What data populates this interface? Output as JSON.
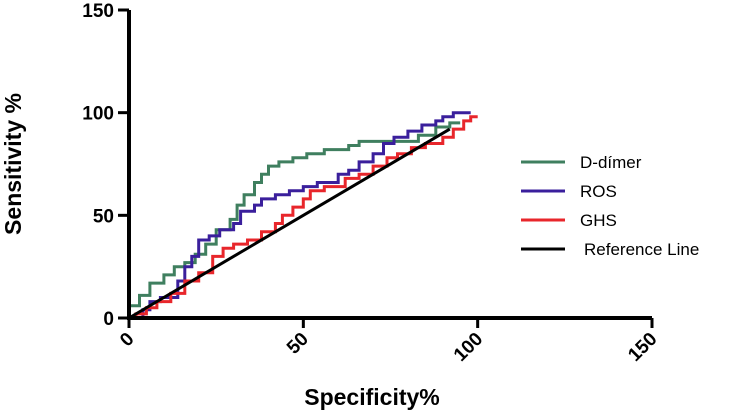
{
  "chart_data": {
    "type": "line",
    "title": "",
    "xlabel": "Specificity%",
    "ylabel": "Sensitivity %",
    "xlim": [
      0,
      150
    ],
    "ylim": [
      0,
      150
    ],
    "x_ticks": [
      "0",
      "50",
      "100",
      "150"
    ],
    "y_ticks": [
      "0",
      "50",
      "100",
      "150"
    ],
    "legend_position": "right",
    "series": [
      {
        "name": "D-dímer",
        "color": "#3f7f5f",
        "points": [
          [
            0,
            0
          ],
          [
            0,
            6
          ],
          [
            3,
            6
          ],
          [
            3,
            11
          ],
          [
            6,
            11
          ],
          [
            6,
            17
          ],
          [
            10,
            17
          ],
          [
            10,
            21
          ],
          [
            13,
            21
          ],
          [
            13,
            25
          ],
          [
            16,
            25
          ],
          [
            16,
            27
          ],
          [
            19,
            27
          ],
          [
            19,
            31
          ],
          [
            22,
            31
          ],
          [
            22,
            36
          ],
          [
            25,
            36
          ],
          [
            25,
            43
          ],
          [
            29,
            43
          ],
          [
            29,
            48
          ],
          [
            31,
            48
          ],
          [
            31,
            55
          ],
          [
            33,
            55
          ],
          [
            33,
            60
          ],
          [
            36,
            60
          ],
          [
            36,
            66
          ],
          [
            38,
            66
          ],
          [
            38,
            70
          ],
          [
            40,
            70
          ],
          [
            40,
            74
          ],
          [
            43,
            74
          ],
          [
            43,
            76
          ],
          [
            47,
            76
          ],
          [
            47,
            78
          ],
          [
            51,
            78
          ],
          [
            51,
            80
          ],
          [
            56,
            80
          ],
          [
            56,
            82
          ],
          [
            63,
            82
          ],
          [
            63,
            84
          ],
          [
            66,
            84
          ],
          [
            66,
            86
          ],
          [
            83,
            86
          ],
          [
            83,
            89
          ],
          [
            88,
            89
          ],
          [
            88,
            93
          ],
          [
            92,
            93
          ],
          [
            92,
            95
          ],
          [
            95,
            95
          ]
        ]
      },
      {
        "name": "ROS",
        "color": "#3a1f9c",
        "points": [
          [
            0,
            0
          ],
          [
            4,
            0
          ],
          [
            4,
            4
          ],
          [
            6,
            4
          ],
          [
            6,
            8
          ],
          [
            9,
            8
          ],
          [
            9,
            10
          ],
          [
            14,
            10
          ],
          [
            14,
            18
          ],
          [
            16,
            18
          ],
          [
            16,
            25
          ],
          [
            18,
            25
          ],
          [
            18,
            30
          ],
          [
            20,
            30
          ],
          [
            20,
            38
          ],
          [
            23,
            38
          ],
          [
            23,
            40
          ],
          [
            26,
            40
          ],
          [
            26,
            43
          ],
          [
            30,
            43
          ],
          [
            30,
            46
          ],
          [
            32,
            46
          ],
          [
            32,
            52
          ],
          [
            36,
            52
          ],
          [
            36,
            55
          ],
          [
            38,
            55
          ],
          [
            38,
            58
          ],
          [
            42,
            58
          ],
          [
            42,
            60
          ],
          [
            46,
            60
          ],
          [
            46,
            62
          ],
          [
            50,
            62
          ],
          [
            50,
            64
          ],
          [
            54,
            64
          ],
          [
            54,
            66
          ],
          [
            60,
            66
          ],
          [
            60,
            70
          ],
          [
            63,
            70
          ],
          [
            63,
            72
          ],
          [
            66,
            72
          ],
          [
            66,
            76
          ],
          [
            70,
            76
          ],
          [
            70,
            80
          ],
          [
            73,
            80
          ],
          [
            73,
            85
          ],
          [
            76,
            85
          ],
          [
            76,
            88
          ],
          [
            80,
            88
          ],
          [
            80,
            91
          ],
          [
            84,
            91
          ],
          [
            84,
            94
          ],
          [
            88,
            94
          ],
          [
            88,
            96
          ],
          [
            90,
            96
          ],
          [
            90,
            98
          ],
          [
            93,
            98
          ],
          [
            93,
            100
          ],
          [
            98,
            100
          ]
        ]
      },
      {
        "name": "GHS",
        "color": "#e8262b",
        "points": [
          [
            0,
            0
          ],
          [
            2,
            0
          ],
          [
            2,
            2
          ],
          [
            5,
            2
          ],
          [
            5,
            5
          ],
          [
            8,
            5
          ],
          [
            8,
            8
          ],
          [
            12,
            8
          ],
          [
            12,
            12
          ],
          [
            16,
            12
          ],
          [
            16,
            18
          ],
          [
            20,
            18
          ],
          [
            20,
            22
          ],
          [
            24,
            22
          ],
          [
            24,
            30
          ],
          [
            27,
            30
          ],
          [
            27,
            34
          ],
          [
            30,
            34
          ],
          [
            30,
            36
          ],
          [
            34,
            36
          ],
          [
            34,
            38
          ],
          [
            38,
            38
          ],
          [
            38,
            42
          ],
          [
            42,
            42
          ],
          [
            42,
            46
          ],
          [
            44,
            46
          ],
          [
            44,
            50
          ],
          [
            47,
            50
          ],
          [
            47,
            54
          ],
          [
            50,
            54
          ],
          [
            50,
            58
          ],
          [
            52,
            58
          ],
          [
            52,
            62
          ],
          [
            56,
            62
          ],
          [
            56,
            64
          ],
          [
            62,
            64
          ],
          [
            62,
            68
          ],
          [
            66,
            68
          ],
          [
            66,
            70
          ],
          [
            70,
            70
          ],
          [
            70,
            74
          ],
          [
            74,
            74
          ],
          [
            74,
            78
          ],
          [
            77,
            78
          ],
          [
            77,
            80
          ],
          [
            81,
            80
          ],
          [
            81,
            83
          ],
          [
            85,
            83
          ],
          [
            85,
            85
          ],
          [
            90,
            85
          ],
          [
            90,
            88
          ],
          [
            93,
            88
          ],
          [
            93,
            92
          ],
          [
            96,
            92
          ],
          [
            96,
            96
          ],
          [
            98,
            96
          ],
          [
            98,
            98
          ],
          [
            100,
            98
          ]
        ]
      },
      {
        "name": "Reference Line",
        "color": "#000000",
        "points": [
          [
            0,
            0
          ],
          [
            92,
            92
          ]
        ]
      }
    ]
  }
}
